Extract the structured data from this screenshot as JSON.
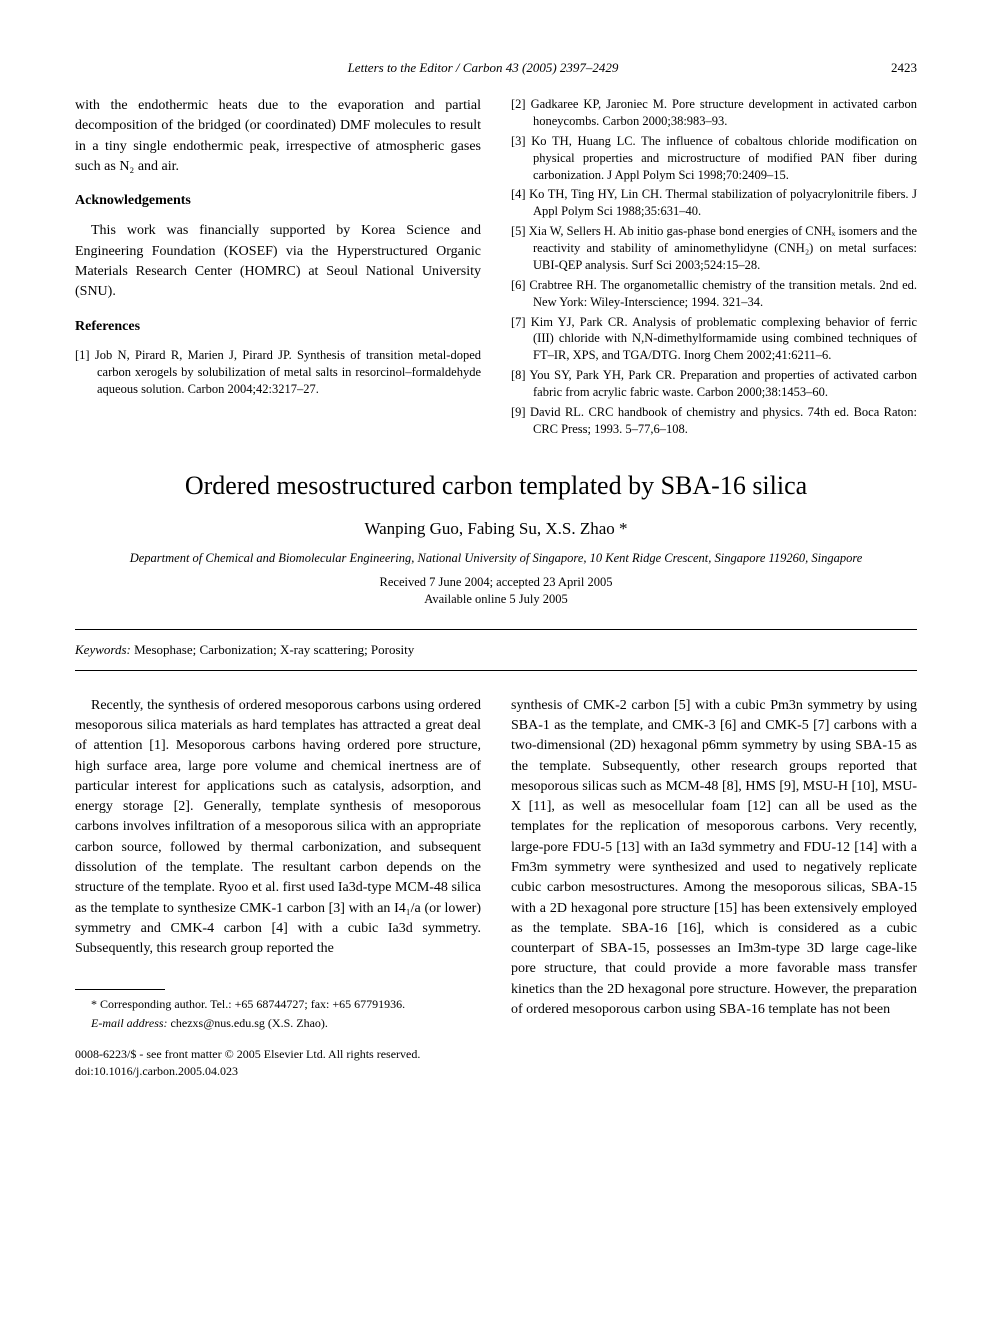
{
  "header": {
    "journal_line": "Letters to the Editor / Carbon 43 (2005) 2397–2429",
    "page_number": "2423"
  },
  "top_article": {
    "continuation_para": "with the endothermic heats due to the evaporation and partial decomposition of the bridged (or coordinated) DMF molecules to result in a tiny single endothermic peak, irrespective of atmospheric gases such as N₂ and air.",
    "ack_heading": "Acknowledgements",
    "ack_text": "This work was financially supported by Korea Science and Engineering Foundation (KOSEF) via the Hyperstructured Organic Materials Research Center (HOMRC) at Seoul National University (SNU).",
    "refs_heading": "References",
    "refs": [
      "[1] Job N, Pirard R, Marien J, Pirard JP. Synthesis of transition metal-doped carbon xerogels by solubilization of metal salts in resorcinol–formaldehyde aqueous solution. Carbon 2004;42:3217–27.",
      "[2] Gadkaree KP, Jaroniec M. Pore structure development in activated carbon honeycombs. Carbon 2000;38:983–93.",
      "[3] Ko TH, Huang LC. The influence of cobaltous chloride modification on physical properties and microstructure of modified PAN fiber during carbonization. J Appl Polym Sci 1998;70:2409–15.",
      "[4] Ko TH, Ting HY, Lin CH. Thermal stabilization of polyacrylonitrile fibers. J Appl Polym Sci 1988;35:631–40.",
      "[5] Xia W, Sellers H. Ab initio gas-phase bond energies of CNHₓ isomers and the reactivity and stability of aminomethylidyne (CNH₂) on metal surfaces: UBI-QEP analysis. Surf Sci 2003;524:15–28.",
      "[6] Crabtree RH. The organometallic chemistry of the transition metals. 2nd ed. New York: Wiley-Interscience; 1994. 321–34.",
      "[7] Kim YJ, Park CR. Analysis of problematic complexing behavior of ferric (III) chloride with N,N-dimethylformamide using combined techniques of FT–IR, XPS, and TGA/DTG. Inorg Chem 2002;41:6211–6.",
      "[8] You SY, Park YH, Park CR. Preparation and properties of activated carbon fabric from acrylic fabric waste. Carbon 2000;38:1453–60.",
      "[9] David RL. CRC handbook of chemistry and physics. 74th ed. Boca Raton: CRC Press; 1993. 5–77,6–108."
    ]
  },
  "main_article": {
    "title": "Ordered mesostructured carbon templated by SBA-16 silica",
    "authors": "Wanping Guo, Fabing Su, X.S. Zhao *",
    "affiliation": "Department of Chemical and Biomolecular Engineering, National University of Singapore, 10 Kent Ridge Crescent, Singapore 119260, Singapore",
    "received": "Received 7 June 2004; accepted 23 April 2005",
    "available": "Available online 5 July 2005",
    "keywords_label": "Keywords:",
    "keywords": " Mesophase; Carbonization; X-ray scattering; Porosity",
    "body_left": "Recently, the synthesis of ordered mesoporous carbons using ordered mesoporous silica materials as hard templates has attracted a great deal of attention [1]. Mesoporous carbons having ordered pore structure, high surface area, large pore volume and chemical inertness are of particular interest for applications such as catalysis, adsorption, and energy storage [2]. Generally, template synthesis of mesoporous carbons involves infiltration of a mesoporous silica with an appropriate carbon source, followed by thermal carbonization, and subsequent dissolution of the template. The resultant carbon depends on the structure of the template. Ryoo et al. first used Ia3d-type MCM-48 silica as the template to synthesize CMK-1 carbon [3] with an I4₁/a (or lower) symmetry and CMK-4 carbon [4] with a cubic Ia3d symmetry. Subsequently, this research group reported the",
    "body_right": "synthesis of CMK-2 carbon [5] with a cubic Pm3n symmetry by using SBA-1 as the template, and CMK-3 [6] and CMK-5 [7] carbons with a two-dimensional (2D) hexagonal p6mm symmetry by using SBA-15 as the template. Subsequently, other research groups reported that mesoporous silicas such as MCM-48 [8], HMS [9], MSU-H [10], MSU-X [11], as well as mesocellular foam [12] can all be used as the templates for the replication of mesoporous carbons. Very recently, large-pore FDU-5 [13] with an Ia3d symmetry and FDU-12 [14] with a Fm3m symmetry were synthesized and used to negatively replicate cubic carbon mesostructures. Among the mesoporous silicas, SBA-15 with a 2D hexagonal pore structure [15] has been extensively employed as the template. SBA-16 [16], which is considered as a cubic counterpart of SBA-15, possesses an Im3m-type 3D large cage-like pore structure, that could provide a more favorable mass transfer kinetics than the 2D hexagonal pore structure. However, the preparation of ordered mesoporous carbon using SBA-16 template has not been",
    "footnote1": "* Corresponding author. Tel.: +65 68744727; fax: +65 67791936.",
    "footnote2_label": "E-mail address:",
    "footnote2_email": " chezxs@nus.edu.sg (X.S. Zhao).",
    "copyright": "0008-6223/$ - see front matter © 2005 Elsevier Ltd. All rights reserved.",
    "doi": "doi:10.1016/j.carbon.2005.04.023"
  }
}
